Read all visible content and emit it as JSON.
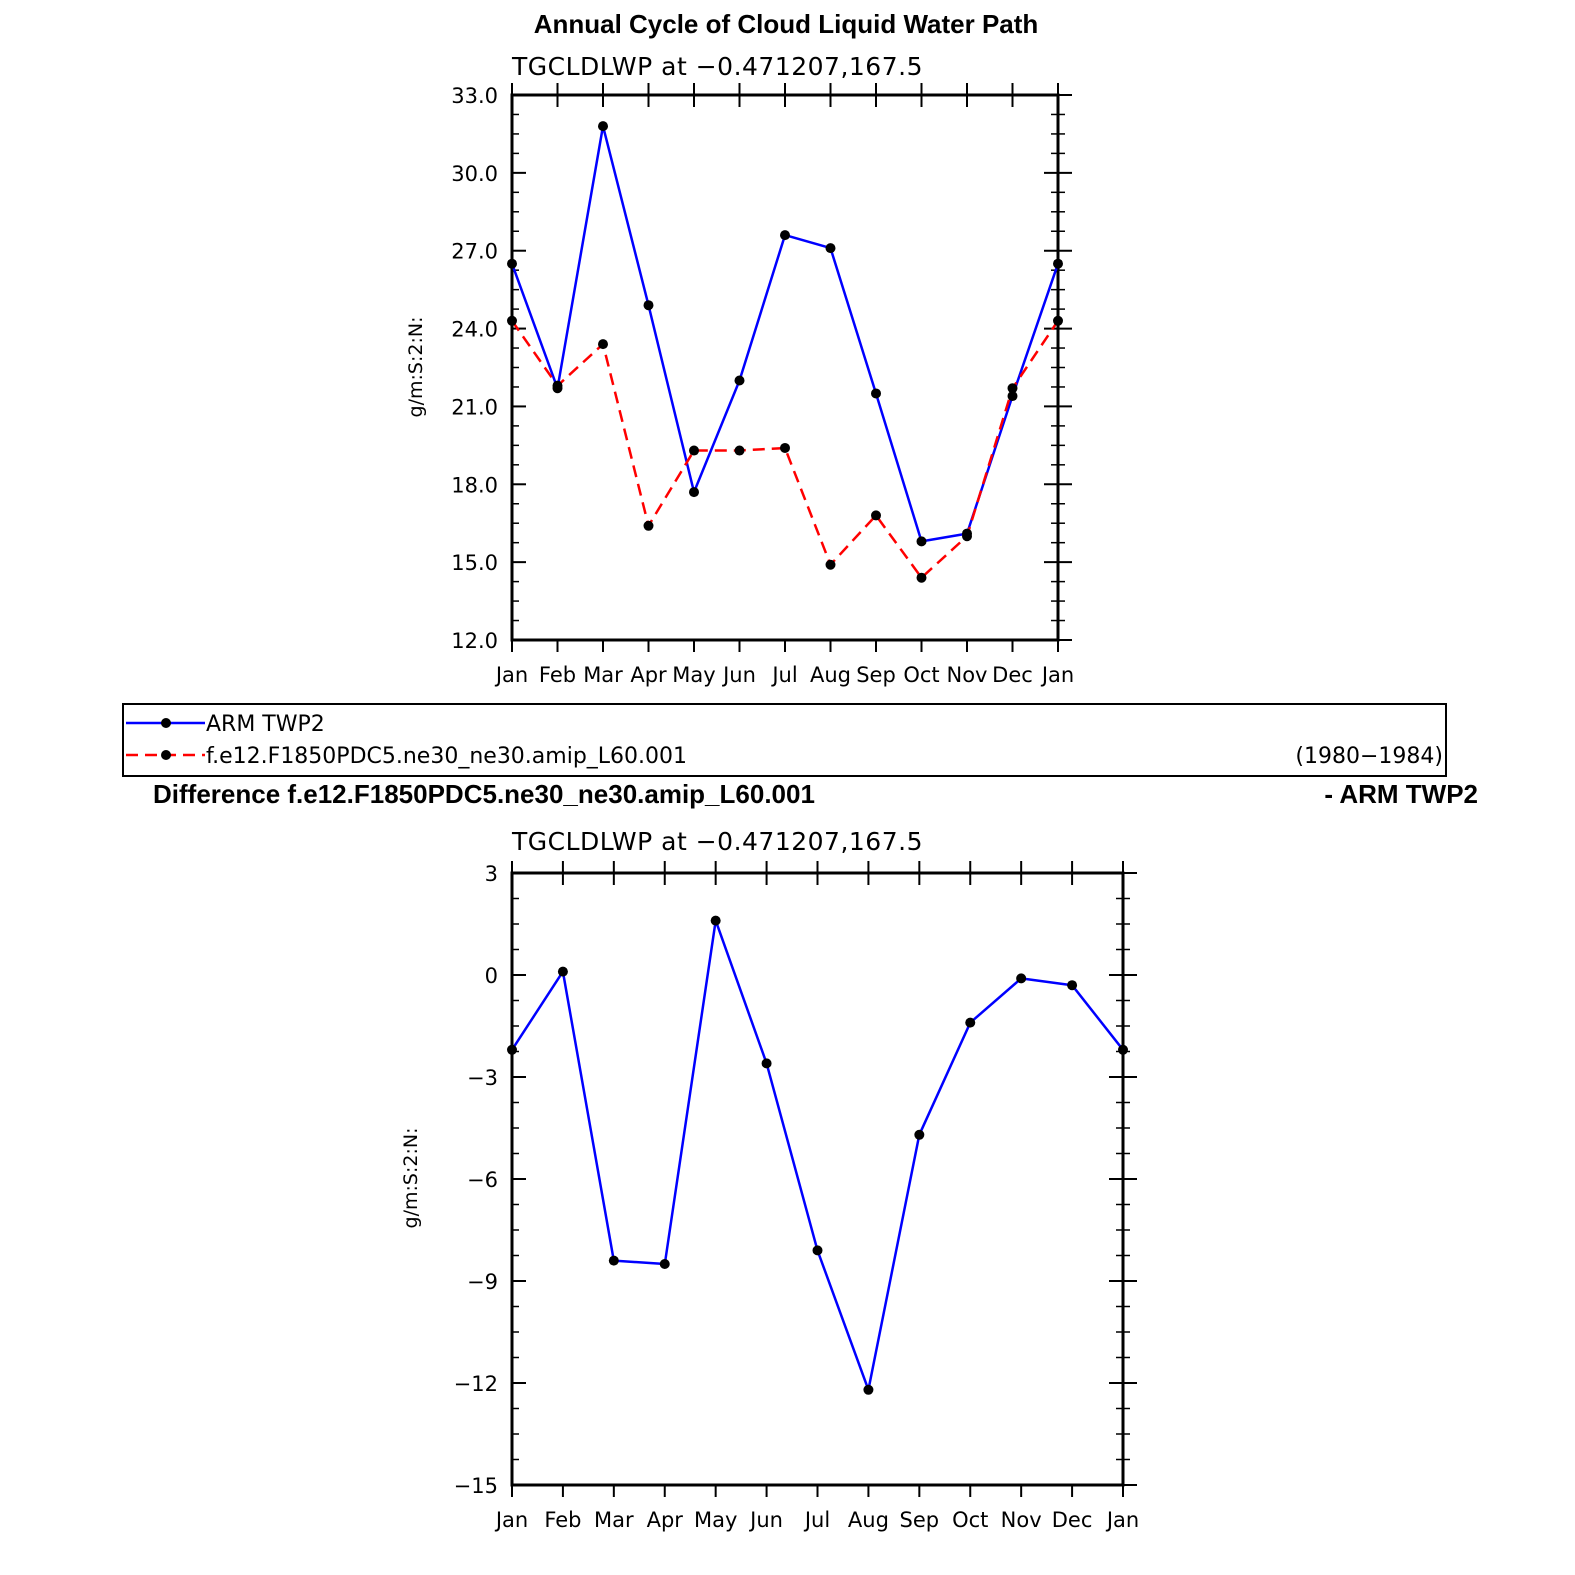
{
  "chart_data": [
    {
      "type": "line",
      "title": "Annual Cycle of Cloud Liquid Water Path",
      "subtitle": "TGCLDLWP  at  −0.471207,167.5",
      "ylabel": "g/m:S:2:N:",
      "ylim": [
        12,
        33
      ],
      "yticks": [
        "12.0",
        "15.0",
        "18.0",
        "21.0",
        "24.0",
        "27.0",
        "30.0",
        "33.0"
      ],
      "categories": [
        "Jan",
        "Feb",
        "Mar",
        "Apr",
        "May",
        "Jun",
        "Jul",
        "Aug",
        "Sep",
        "Oct",
        "Nov",
        "Dec",
        "Jan"
      ],
      "series": [
        {
          "name": "ARM TWP2",
          "color": "#0000ff",
          "dash": "solid",
          "values": [
            26.5,
            21.7,
            31.8,
            24.9,
            17.7,
            22.0,
            27.6,
            27.1,
            21.5,
            15.8,
            16.1,
            21.4,
            26.5
          ]
        },
        {
          "name": "f.e12.F1850PDC5.ne30_ne30.amip_L60.001",
          "color": "#ff0000",
          "dash": "dashed",
          "values": [
            24.3,
            21.8,
            23.4,
            16.4,
            19.3,
            19.3,
            19.4,
            14.9,
            16.8,
            14.4,
            16.0,
            21.7,
            24.3
          ]
        }
      ],
      "legend": {
        "placement": "below",
        "entries": [
          "ARM TWP2",
          "f.e12.F1850PDC5.ne30_ne30.amip_L60.001"
        ],
        "period": "(1980−1984)"
      }
    },
    {
      "type": "line",
      "title": "Difference f.e12.F1850PDC5.ne30_ne30.amip_L60.001",
      "title_suffix": "- ARM TWP2",
      "subtitle": "TGCLDLWP  at  −0.471207,167.5",
      "ylabel": "g/m:S:2:N:",
      "ylim": [
        -15,
        3
      ],
      "yticks": [
        "−15",
        "−12",
        "−9",
        "−6",
        "−3",
        "0",
        "3"
      ],
      "categories": [
        "Jan",
        "Feb",
        "Mar",
        "Apr",
        "May",
        "Jun",
        "Jul",
        "Aug",
        "Sep",
        "Oct",
        "Nov",
        "Dec",
        "Jan"
      ],
      "series": [
        {
          "color": "#0000ff",
          "dash": "solid",
          "values": [
            -2.2,
            0.1,
            -8.4,
            -8.5,
            1.6,
            -2.6,
            -8.1,
            -12.2,
            -4.7,
            -1.4,
            -0.1,
            -0.3,
            -2.2
          ]
        }
      ]
    }
  ]
}
